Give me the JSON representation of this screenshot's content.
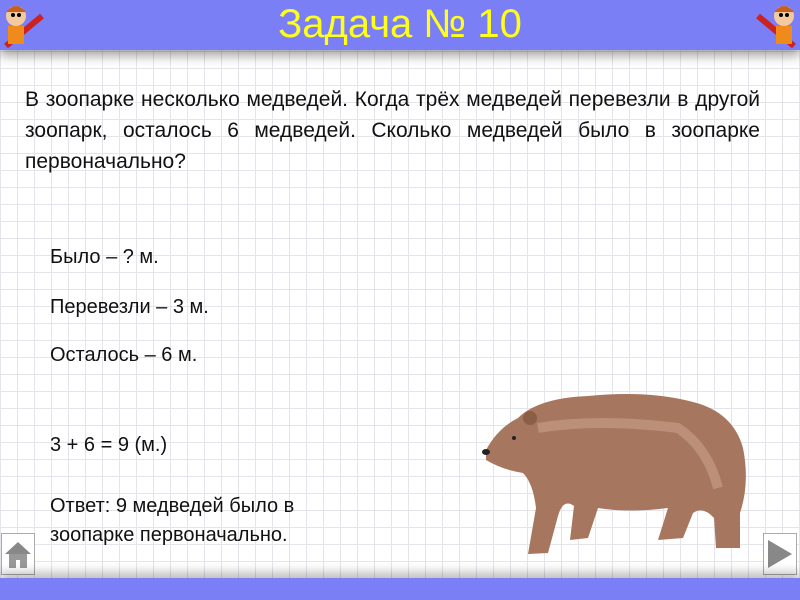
{
  "header": {
    "title": "Задача № 10"
  },
  "problem": "В зоопарке несколько медведей. Когда трёх медведей перевезли в другой зоопарк, осталось 6 медведей. Сколько медведей было в зоопарке первоначально?",
  "condition": [
    "Было – ? м.",
    "Перевезли – 3 м.",
    "Осталось – 6 м."
  ],
  "solution": "3 + 6 = 9 (м.)",
  "answer": "Ответ: 9 медведей было в зоопарке первоначально.",
  "nav": {
    "home_icon": "house-icon",
    "next_icon": "triangle-right-icon"
  },
  "colors": {
    "bar": "#7b7ff5",
    "title": "#ffff1a",
    "bear": "#a7765e"
  }
}
